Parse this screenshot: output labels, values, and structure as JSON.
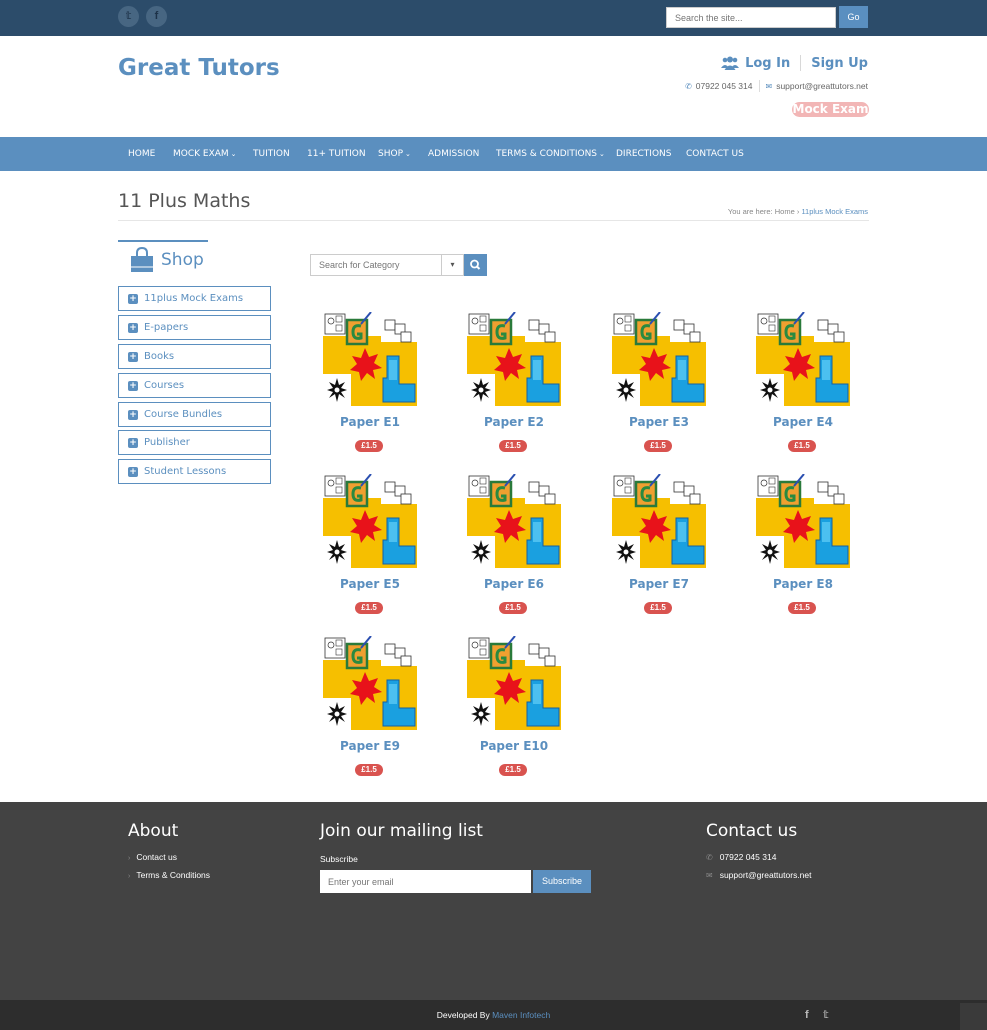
{
  "topbar": {
    "social": [
      {
        "icon": "twitter-icon",
        "glyph": "𝕥"
      },
      {
        "icon": "facebook-icon",
        "glyph": "f"
      }
    ],
    "search_placeholder": "Search the site...",
    "search_button": "Go"
  },
  "header": {
    "brand": "Great Tutors",
    "login": "Log In",
    "signup": "Sign Up",
    "phone": "07922 045 314",
    "email": "support@greattutors.net",
    "badge": "Mock Exam"
  },
  "nav": {
    "items": [
      {
        "label": "HOME",
        "dropdown": false
      },
      {
        "label": "MOCK EXAM",
        "dropdown": true
      },
      {
        "label": "TUITION",
        "dropdown": false
      },
      {
        "label": "11+ TUITION",
        "dropdown": false
      },
      {
        "label": "SHOP",
        "dropdown": true
      },
      {
        "label": "ADMISSION",
        "dropdown": false
      },
      {
        "label": "TERMS & CONDITIONS",
        "dropdown": true
      },
      {
        "label": "DIRECTIONS",
        "dropdown": false
      },
      {
        "label": "CONTACT US",
        "dropdown": false
      }
    ]
  },
  "page": {
    "title": "11 Plus Maths",
    "breadcrumb_prefix": "You are here:",
    "breadcrumb_home": "Home",
    "breadcrumb_sep": "›",
    "breadcrumb_current": "11plus Mock Exams"
  },
  "sidebar": {
    "title": "Shop",
    "categories": [
      "11plus Mock Exams",
      "E-papers",
      "Books",
      "Courses",
      "Course Bundles",
      "Publisher",
      "Student Lessons"
    ]
  },
  "category_search": {
    "placeholder": "Search for Category"
  },
  "products": [
    {
      "name": "Paper E1",
      "price": "£1.5"
    },
    {
      "name": "Paper E2",
      "price": "£1.5"
    },
    {
      "name": "Paper E3",
      "price": "£1.5"
    },
    {
      "name": "Paper E4",
      "price": "£1.5"
    },
    {
      "name": "Paper E5",
      "price": "£1.5"
    },
    {
      "name": "Paper E6",
      "price": "£1.5"
    },
    {
      "name": "Paper E7",
      "price": "£1.5"
    },
    {
      "name": "Paper E8",
      "price": "£1.5"
    },
    {
      "name": "Paper E9",
      "price": "£1.5"
    },
    {
      "name": "Paper E10",
      "price": "£1.5"
    }
  ],
  "footer": {
    "about_title": "About",
    "about_links": [
      "Contact us",
      "Terms & Conditions"
    ],
    "mailing_title": "Join our mailing list",
    "subscribe_label": "Subscribe",
    "email_placeholder": "Enter your email",
    "subscribe_button": "Subscribe",
    "contact_title": "Contact us",
    "contact_phone": "07922 045 314",
    "contact_email": "support@greattutors.net"
  },
  "bottom": {
    "credit_prefix": "Developed By",
    "developer": "Maven Infotech",
    "social": [
      {
        "icon": "facebook-icon",
        "glyph": "f"
      },
      {
        "icon": "twitter-icon",
        "glyph": "𝕥"
      }
    ]
  },
  "colors": {
    "topbar": "#2c4c6a",
    "brand_blue": "#5b8fbf",
    "footer": "#434343",
    "bottom_bar": "#2d2d2d",
    "price_badge": "#d9534f",
    "mock_badge": "#f2b6b6"
  }
}
